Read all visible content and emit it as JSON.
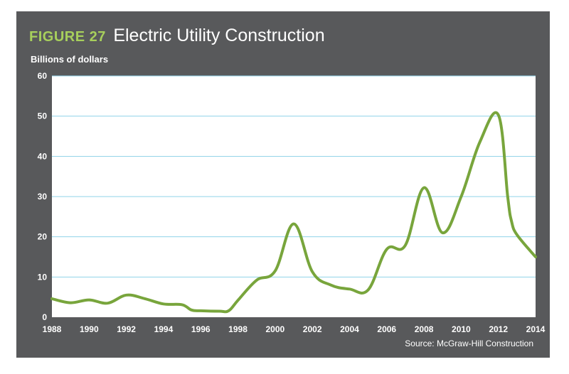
{
  "figure_label": "FIGURE 27",
  "source": "Source: McGraw-Hill Construction",
  "colors": {
    "panel": "#58595b",
    "line": "#78a53c",
    "grid": "#8fd3e8",
    "label_accent": "#a7cf5c"
  },
  "chart_data": {
    "type": "line",
    "title": "Electric Utility Construction",
    "ylabel": "Billions of dollars",
    "xlabel": "",
    "xlim": [
      1988,
      2014
    ],
    "ylim": [
      0,
      60
    ],
    "grid": "horizontal",
    "x_ticks": [
      "1988",
      "1990",
      "1992",
      "1994",
      "1996",
      "1998",
      "2000",
      "2002",
      "2004",
      "2006",
      "2008",
      "2010",
      "2012",
      "2014"
    ],
    "y_ticks": [
      "0",
      "10",
      "20",
      "30",
      "40",
      "50",
      "60"
    ],
    "series": [
      {
        "x": [
          1988,
          1989,
          1990,
          1991,
          1992,
          1993,
          1994,
          1995,
          1995.5,
          1996,
          1997,
          1997.5,
          1998,
          1999,
          2000,
          2001,
          2002,
          2003,
          2004,
          2005,
          2006,
          2007,
          2008,
          2009,
          2010,
          2011,
          2012,
          2012.5,
          2012.7,
          2013,
          2014
        ],
        "y": [
          4.6,
          3.6,
          4.3,
          3.5,
          5.5,
          4.6,
          3.3,
          3.1,
          1.8,
          1.6,
          1.5,
          1.6,
          4.2,
          9.2,
          11.5,
          23.2,
          11.3,
          8.0,
          7.0,
          6.8,
          16.9,
          17.9,
          32.2,
          21.0,
          30.0,
          43.5,
          50.3,
          30.0,
          24.0,
          20.5,
          15.0
        ]
      }
    ]
  }
}
